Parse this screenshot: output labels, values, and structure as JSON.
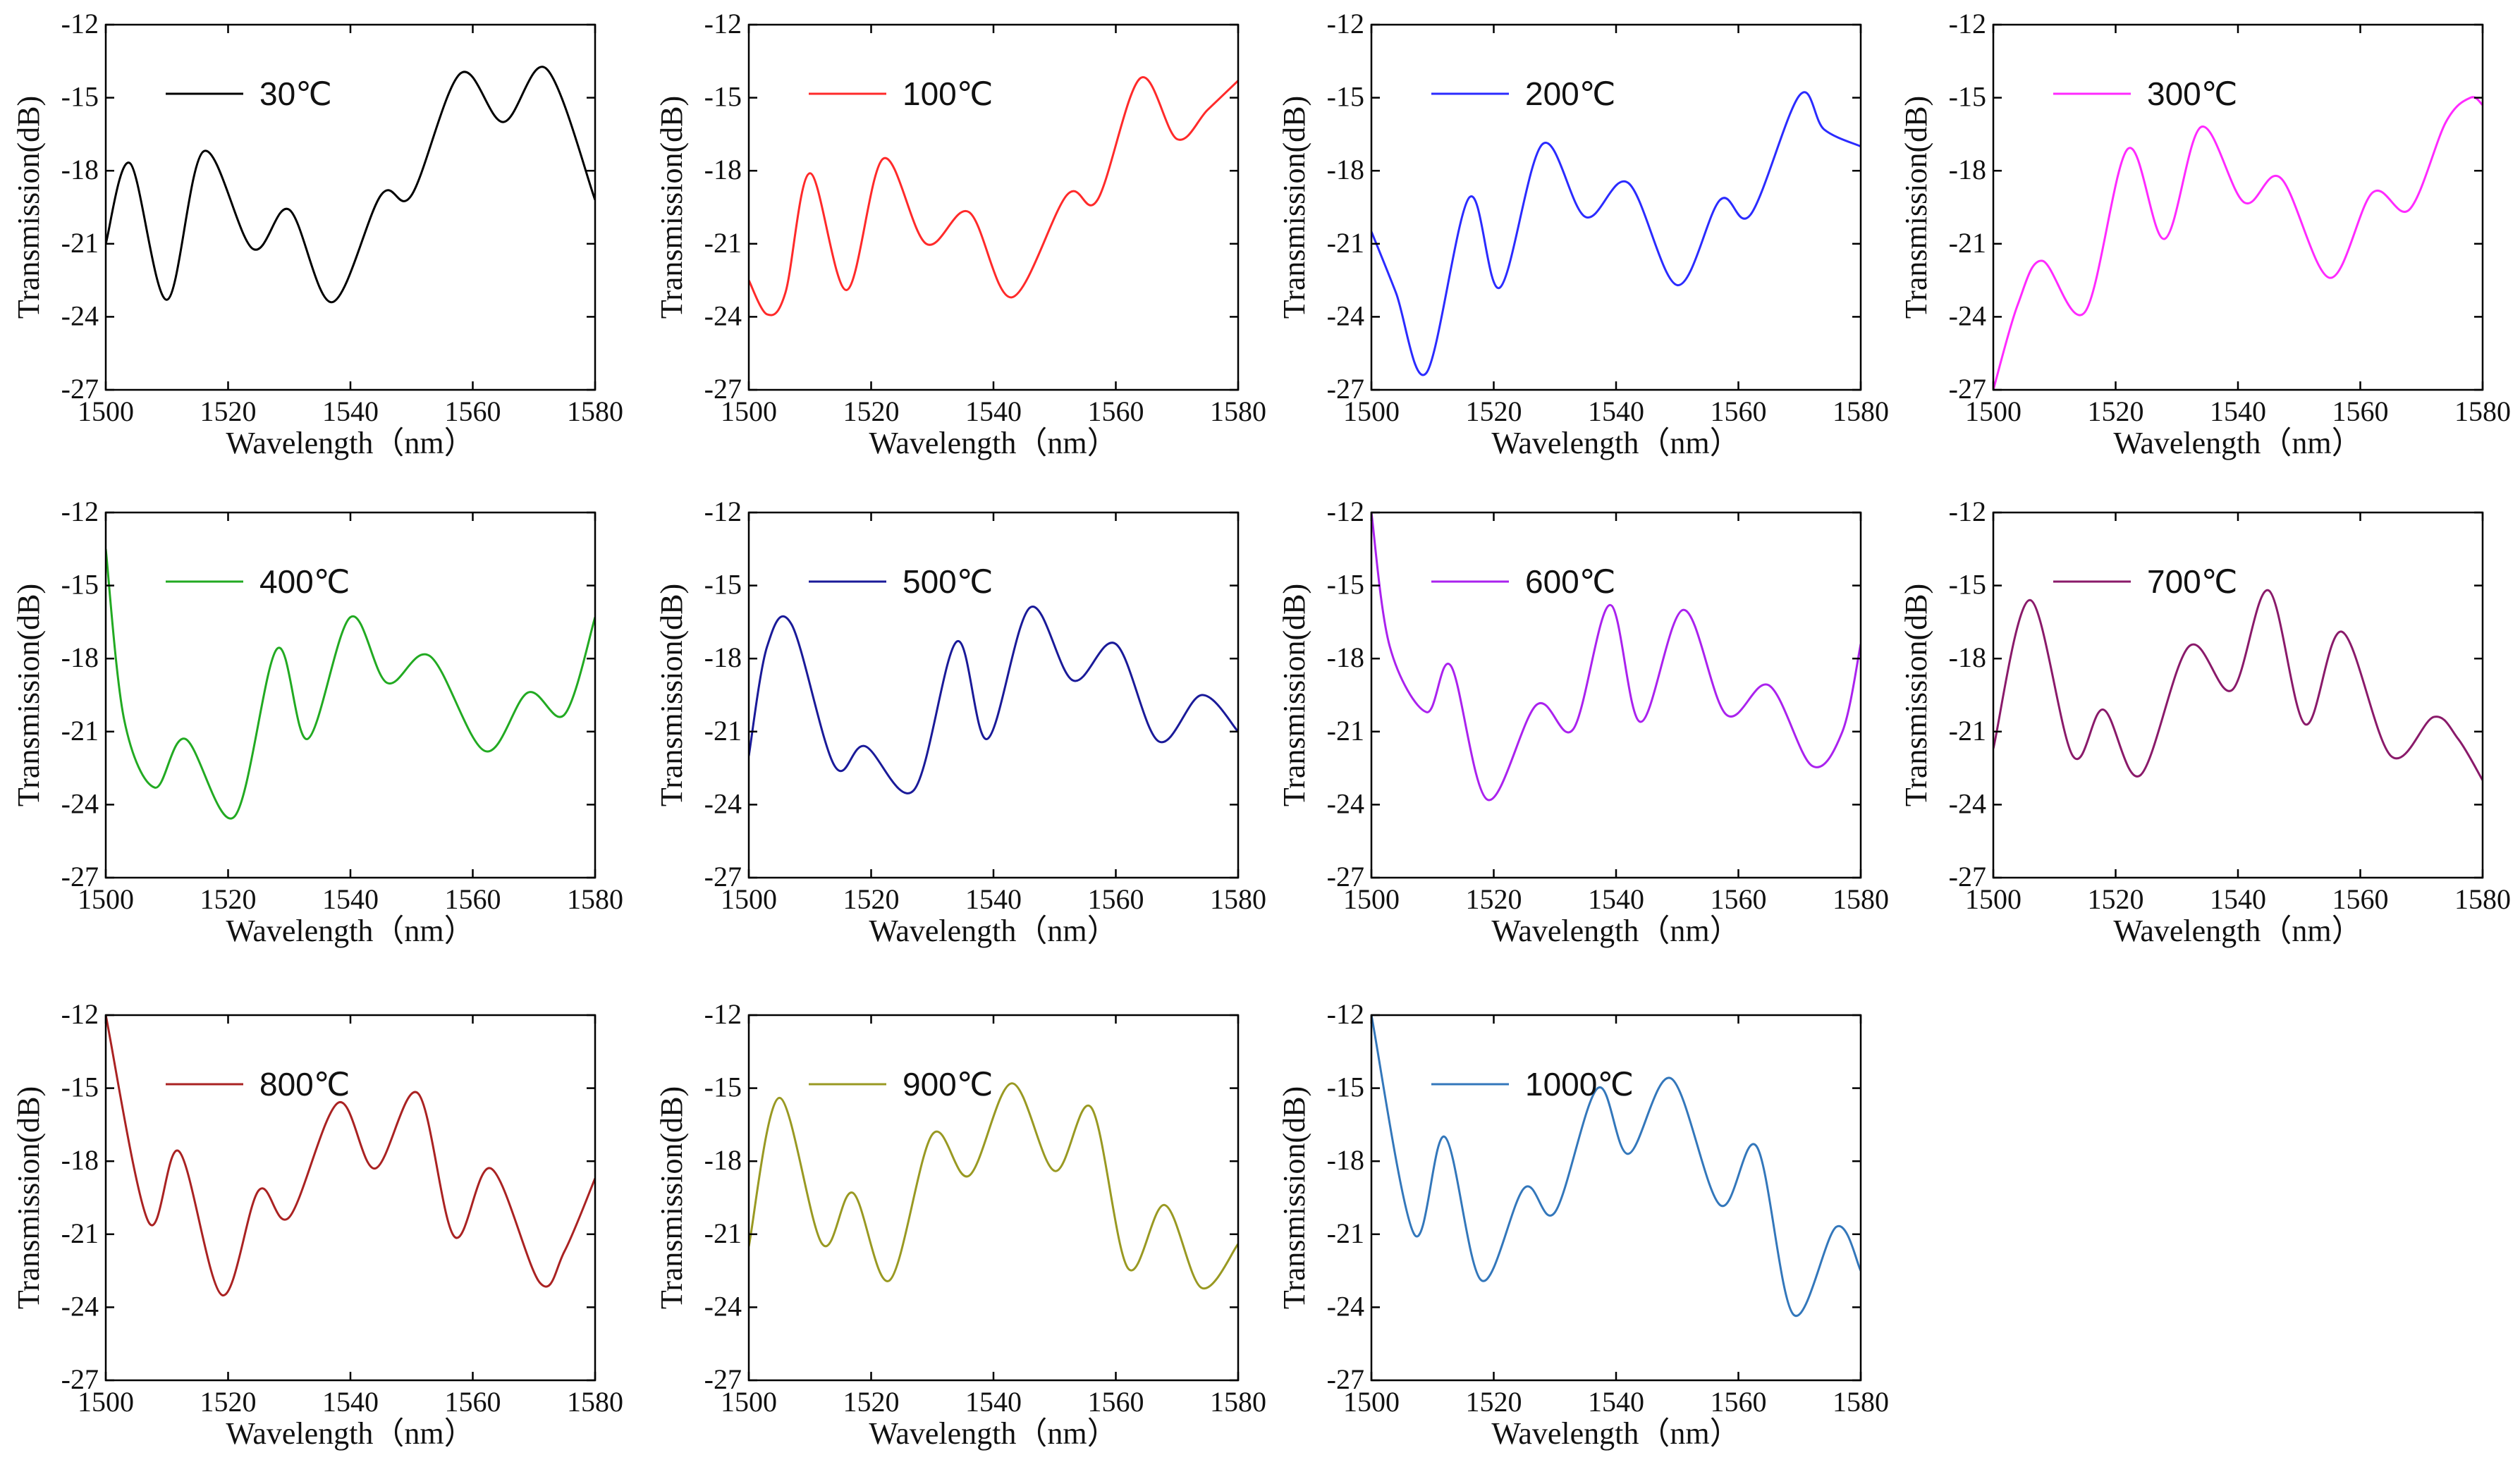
{
  "figure": {
    "x_ticks": [
      "1500",
      "1520",
      "1540",
      "1560",
      "1580"
    ],
    "y_ticks": [
      "-12",
      "-15",
      "-18",
      "-21",
      "-24",
      "-27"
    ]
  },
  "chart_data": [
    {
      "type": "line",
      "legend": "30℃",
      "color": "#000000",
      "xlabel": "Wavelength（nm）",
      "ylabel": "Transmission(dB)",
      "xlim": [
        1500,
        1580
      ],
      "ylim": [
        -27,
        -12
      ],
      "x": [
        1500,
        1504,
        1510,
        1516,
        1524,
        1530,
        1537,
        1545,
        1550,
        1558,
        1565,
        1572,
        1580
      ],
      "y": [
        -21.0,
        -17.7,
        -23.3,
        -17.2,
        -21.2,
        -19.6,
        -23.4,
        -19.0,
        -19.0,
        -14.0,
        -16.0,
        -13.8,
        -19.2
      ]
    },
    {
      "type": "line",
      "legend": "100℃",
      "color": "#ff2a2a",
      "xlabel": "Wavelength（nm）",
      "ylabel": "Transmission(dB)",
      "xlim": [
        1500,
        1580
      ],
      "ylim": [
        -27,
        -12
      ],
      "x": [
        1500,
        1503,
        1506,
        1510,
        1516,
        1522,
        1529,
        1536,
        1543,
        1552,
        1557,
        1564,
        1570,
        1575,
        1580
      ],
      "y": [
        -22.5,
        -23.9,
        -23.0,
        -18.1,
        -22.9,
        -17.5,
        -21.0,
        -19.7,
        -23.2,
        -19.0,
        -19.2,
        -14.2,
        -16.7,
        -15.5,
        -14.3
      ]
    },
    {
      "type": "line",
      "legend": "200℃",
      "color": "#2b2bff",
      "xlabel": "Wavelength（nm）",
      "ylabel": "Transmission(dB)",
      "xlim": [
        1500,
        1580
      ],
      "ylim": [
        -27,
        -12
      ],
      "x": [
        1500,
        1504,
        1509,
        1516,
        1521,
        1528,
        1535,
        1542,
        1550,
        1557,
        1562,
        1570,
        1574,
        1580
      ],
      "y": [
        -20.5,
        -23.0,
        -26.3,
        -19.1,
        -22.8,
        -16.9,
        -19.9,
        -18.5,
        -22.7,
        -19.2,
        -19.8,
        -14.9,
        -16.3,
        -17.0
      ]
    },
    {
      "type": "line",
      "legend": "300℃",
      "color": "#ff2aff",
      "xlabel": "Wavelength（nm）",
      "ylabel": "Transmission(dB)",
      "xlim": [
        1500,
        1580
      ],
      "ylim": [
        -27,
        -12
      ],
      "x": [
        1500,
        1504,
        1508,
        1515,
        1522,
        1528,
        1534,
        1541,
        1547,
        1555,
        1562,
        1568,
        1574,
        1578,
        1580
      ],
      "y": [
        -27.0,
        -23.5,
        -21.7,
        -23.8,
        -17.1,
        -20.8,
        -16.2,
        -19.3,
        -18.3,
        -22.4,
        -18.9,
        -19.6,
        -16.0,
        -15.0,
        -15.3
      ]
    },
    {
      "type": "line",
      "legend": "400℃",
      "color": "#22aa22",
      "xlabel": "Wavelength（nm）",
      "ylabel": "Transmission(dB)",
      "xlim": [
        1500,
        1580
      ],
      "ylim": [
        -27,
        -12
      ],
      "x": [
        1500,
        1503,
        1508,
        1513,
        1521,
        1528,
        1533,
        1540,
        1546,
        1553,
        1562,
        1569,
        1575,
        1580
      ],
      "y": [
        -13.5,
        -20.5,
        -23.3,
        -21.3,
        -24.5,
        -17.6,
        -21.3,
        -16.3,
        -19.0,
        -17.9,
        -21.8,
        -19.4,
        -20.3,
        -16.3
      ]
    },
    {
      "type": "line",
      "legend": "500℃",
      "color": "#1a1a99",
      "xlabel": "Wavelength（nm）",
      "ylabel": "Transmission(dB)",
      "xlim": [
        1500,
        1580
      ],
      "ylim": [
        -27,
        -12
      ],
      "x": [
        1500,
        1503,
        1507,
        1514,
        1519,
        1527,
        1534,
        1539,
        1546,
        1553,
        1560,
        1567,
        1574,
        1580
      ],
      "y": [
        -22.0,
        -17.5,
        -16.6,
        -22.4,
        -21.6,
        -23.4,
        -17.3,
        -21.3,
        -15.9,
        -18.9,
        -17.4,
        -21.4,
        -19.5,
        -21.0
      ]
    },
    {
      "type": "line",
      "legend": "600℃",
      "color": "#aa22ee",
      "xlabel": "Wavelength（nm）",
      "ylabel": "Transmission(dB)",
      "xlim": [
        1500,
        1580
      ],
      "ylim": [
        -27,
        -12
      ],
      "x": [
        1500,
        1503,
        1509,
        1513,
        1519,
        1527,
        1533,
        1539,
        1544,
        1551,
        1558,
        1565,
        1572,
        1577,
        1580
      ],
      "y": [
        -12.0,
        -17.5,
        -20.2,
        -18.3,
        -23.8,
        -19.9,
        -20.9,
        -15.8,
        -20.6,
        -16.0,
        -20.3,
        -19.1,
        -22.4,
        -21.0,
        -17.4
      ]
    },
    {
      "type": "line",
      "legend": "700℃",
      "color": "#8a1a6a",
      "xlabel": "Wavelength（nm）",
      "ylabel": "Transmission(dB)",
      "xlim": [
        1500,
        1580
      ],
      "ylim": [
        -27,
        -12
      ],
      "x": [
        1500,
        1506,
        1513,
        1518,
        1524,
        1532,
        1539,
        1545,
        1551,
        1557,
        1565,
        1572,
        1576,
        1580
      ],
      "y": [
        -21.7,
        -15.6,
        -22.0,
        -20.1,
        -22.8,
        -17.5,
        -19.3,
        -15.2,
        -20.7,
        -16.9,
        -22.0,
        -20.4,
        -21.3,
        -23.0
      ]
    },
    {
      "type": "line",
      "legend": "800℃",
      "color": "#aa2222",
      "xlabel": "Wavelength（nm）",
      "ylabel": "Transmission(dB)",
      "xlim": [
        1500,
        1580
      ],
      "ylim": [
        -27,
        -12
      ],
      "x": [
        1500,
        1507,
        1512,
        1519,
        1525,
        1530,
        1538,
        1544,
        1551,
        1557,
        1563,
        1571,
        1575,
        1580
      ],
      "y": [
        -12.0,
        -20.5,
        -17.6,
        -23.5,
        -19.2,
        -20.3,
        -15.6,
        -18.3,
        -15.2,
        -21.1,
        -18.3,
        -23.0,
        -21.7,
        -18.7
      ]
    },
    {
      "type": "line",
      "legend": "900℃",
      "color": "#999922",
      "xlabel": "Wavelength（nm）",
      "ylabel": "Transmission(dB)",
      "xlim": [
        1500,
        1580
      ],
      "ylim": [
        -27,
        -12
      ],
      "x": [
        1500,
        1505,
        1512,
        1517,
        1523,
        1530,
        1536,
        1543,
        1550,
        1556,
        1562,
        1568,
        1574,
        1580
      ],
      "y": [
        -21.5,
        -15.4,
        -21.4,
        -19.3,
        -22.9,
        -16.9,
        -18.6,
        -14.8,
        -18.4,
        -15.8,
        -22.4,
        -19.8,
        -23.2,
        -21.4
      ]
    },
    {
      "type": "line",
      "legend": "1000℃",
      "color": "#3377bb",
      "xlabel": "Wavelength（nm）",
      "ylabel": "Transmission(dB)",
      "xlim": [
        1500,
        1580
      ],
      "ylim": [
        -27,
        -12
      ],
      "x": [
        1500,
        1507,
        1512,
        1518,
        1525,
        1530,
        1537,
        1542,
        1549,
        1557,
        1563,
        1569,
        1576,
        1580
      ],
      "y": [
        -12.0,
        -21.0,
        -17.0,
        -22.9,
        -19.1,
        -20.1,
        -15.0,
        -17.7,
        -14.6,
        -19.8,
        -17.4,
        -24.3,
        -20.7,
        -22.5
      ]
    }
  ]
}
